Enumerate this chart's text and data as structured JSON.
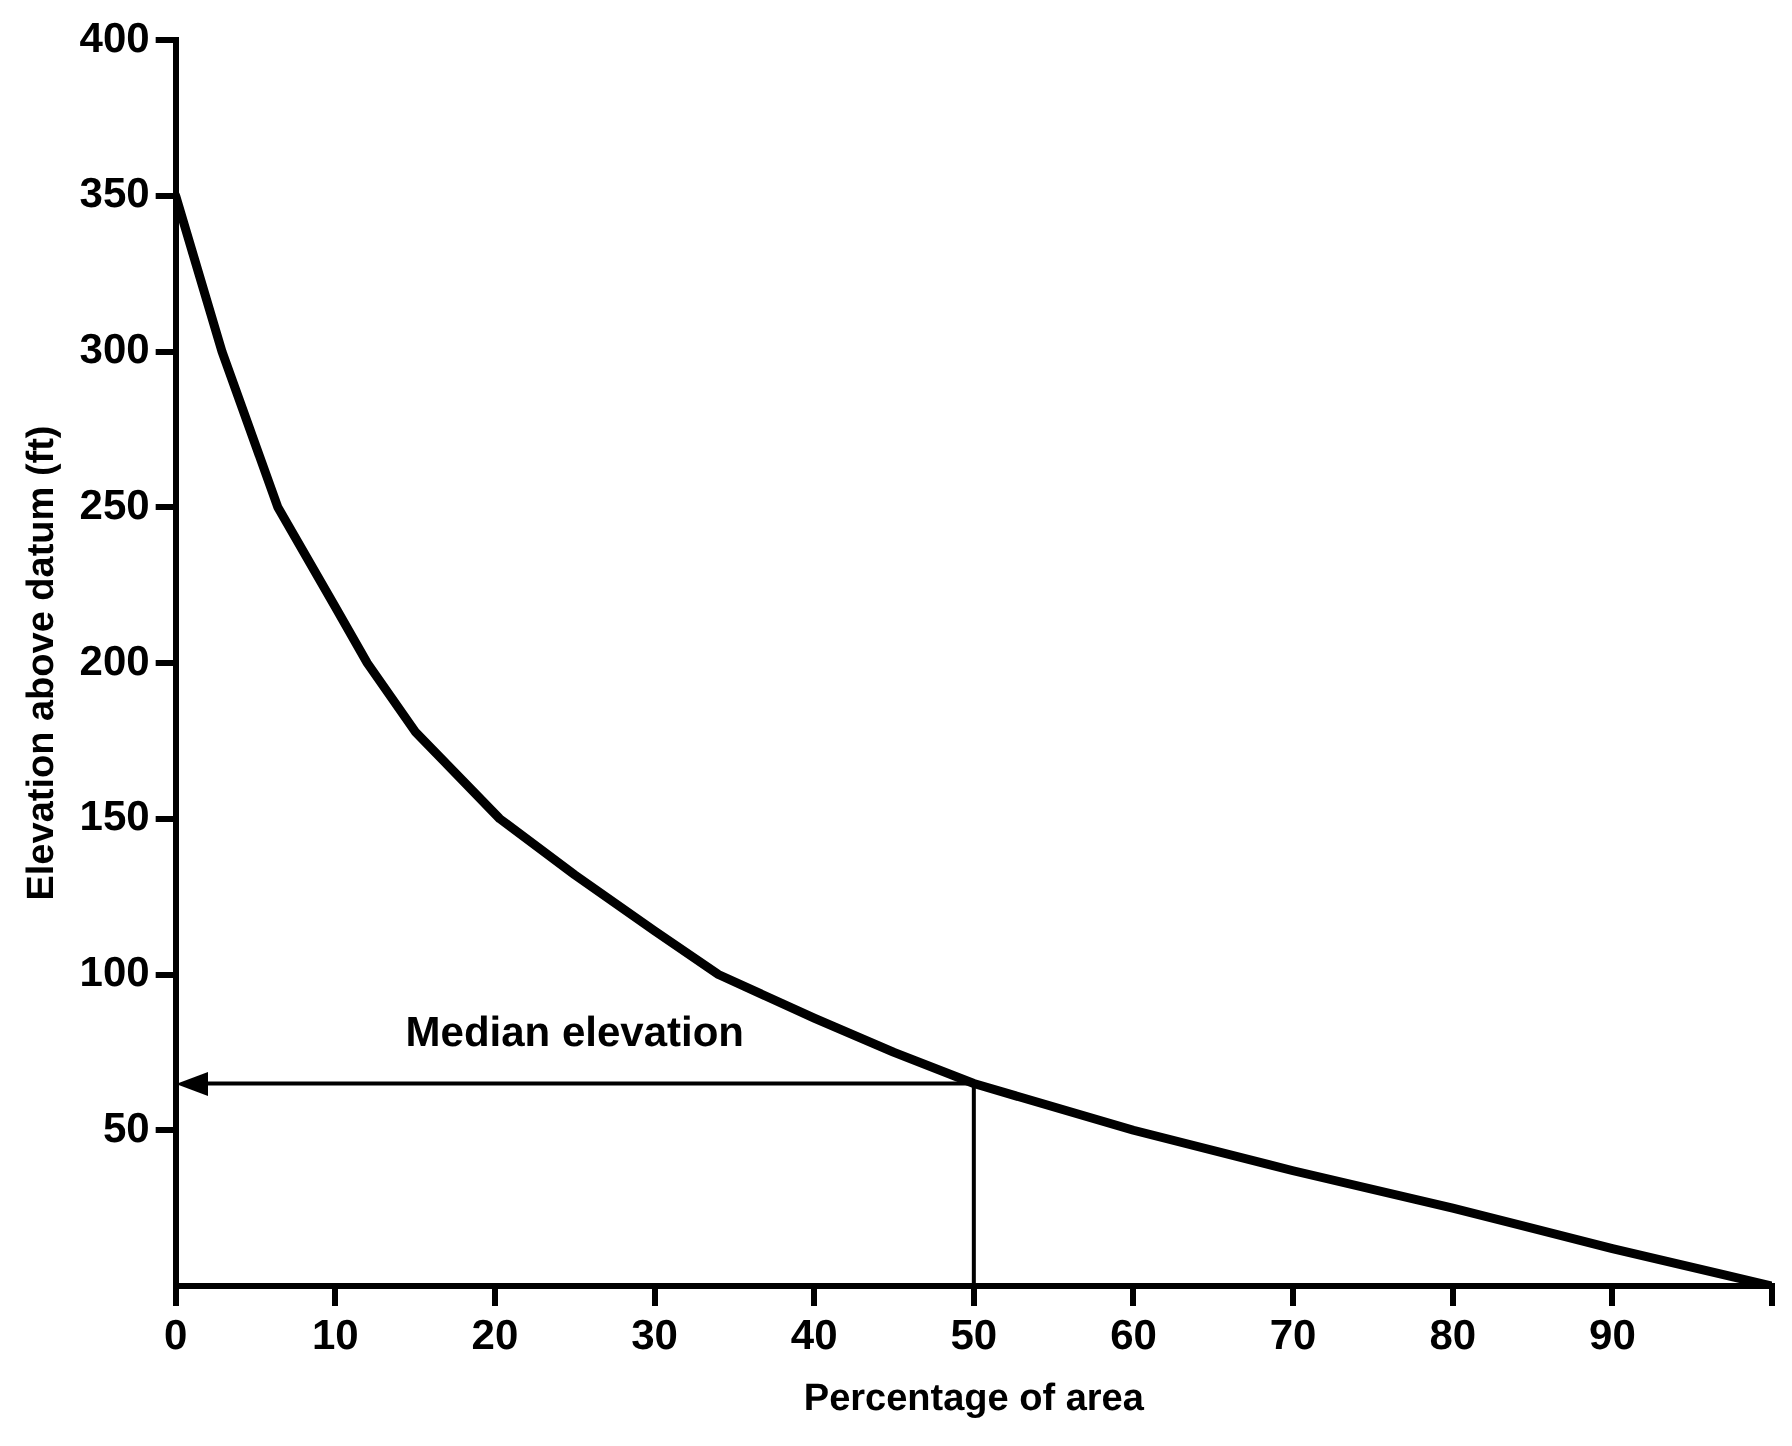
{
  "chart_data": {
    "type": "line",
    "xlabel": "Percentage of area",
    "ylabel": "Elevation above datum (ft)",
    "xlim": [
      0,
      100
    ],
    "xticks": [
      0,
      10,
      20,
      30,
      40,
      50,
      60,
      70,
      80,
      90,
      {
        "value": 100,
        "label": null
      }
    ],
    "ylim": [
      0,
      400
    ],
    "yticks": [
      50,
      100,
      150,
      200,
      250,
      300,
      350,
      400
    ],
    "grid": false,
    "legend": false,
    "marker": "none",
    "line_style": "solid",
    "series": [
      {
        "color": "#000000",
        "x": [
          0,
          2.9,
          6.4,
          10,
          12,
          15,
          20.3,
          25,
          30,
          34,
          40,
          45,
          50,
          60,
          70,
          80,
          90,
          100
        ],
        "values": [
          350,
          300,
          250,
          218,
          200,
          178,
          150,
          132,
          114,
          100,
          86,
          75,
          65,
          50,
          37,
          25,
          12,
          0
        ]
      }
    ],
    "ref_lines": [
      {
        "axis": "y",
        "value": 65,
        "label": "Median elevation",
        "color": "#000000"
      },
      {
        "axis": "x",
        "value": 50,
        "color": "#000000"
      }
    ]
  }
}
